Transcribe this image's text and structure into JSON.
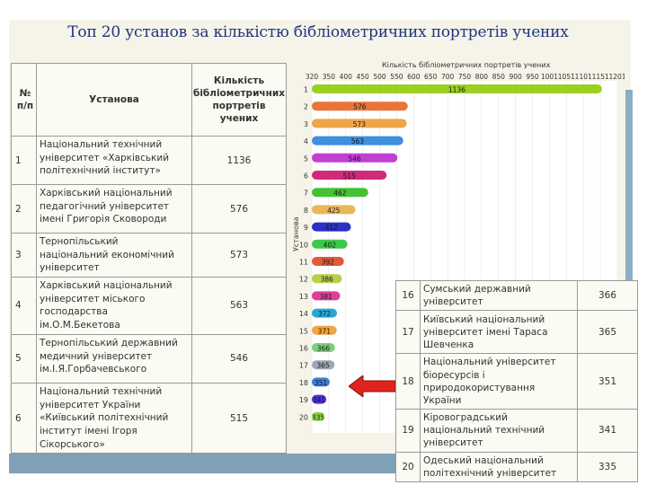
{
  "slide_title": "Топ 20 установ за кількістю бібліометричних портретів учених",
  "left_table": {
    "headers": {
      "num": "№ п/п",
      "name": "Установа",
      "count": "Кількість бібліометричних портретів учених"
    },
    "rows": [
      {
        "num": "1",
        "name": "Національний технічний університет «Харківський політехнічний інститут»",
        "count": "1136"
      },
      {
        "num": "2",
        "name": "Харківський національний педагогічний університет імені Григорія Сковороди",
        "count": "576"
      },
      {
        "num": "3",
        "name": "Тернопільський національний економічний університет",
        "count": "573"
      },
      {
        "num": "4",
        "name": "Харківський національний університет міського господарства ім.О.М.Бекетова",
        "count": "563"
      },
      {
        "num": "5",
        "name": "Тернопільський державний медичний університет ім.І.Я.Горбачевського",
        "count": "546"
      },
      {
        "num": "6",
        "name": "Національний технічний університет України «Київський політехнічний інститут імені Ігоря Сікорського»",
        "count": "515"
      }
    ]
  },
  "right_table": {
    "rows": [
      {
        "num": "16",
        "name": "Сумський державний університет",
        "count": "366"
      },
      {
        "num": "17",
        "name": "Київський національний університет імені Тараса Шевченка",
        "count": "365"
      },
      {
        "num": "18",
        "name": "Національний університет біоресурсів і природокористування України",
        "count": "351"
      },
      {
        "num": "19",
        "name": "Кіровоградський національний технічний університет",
        "count": "341"
      },
      {
        "num": "20",
        "name": "Одеський національний політехнічний університет",
        "count": "335"
      }
    ]
  },
  "chart_data": {
    "type": "bar",
    "orientation": "horizontal",
    "title": "Кількість бібліометричних портретів учених",
    "ylabel": "Установа",
    "x_ticks": [
      "320",
      "350",
      "400",
      "450",
      "500",
      "550",
      "600",
      "650",
      "700",
      "750",
      "800",
      "850",
      "900",
      "950",
      "1001",
      "1051",
      "1101",
      "1151",
      "1201"
    ],
    "categories": [
      "1",
      "2",
      "3",
      "4",
      "5",
      "6",
      "7",
      "8",
      "9",
      "10",
      "11",
      "12",
      "13",
      "14",
      "15",
      "16",
      "17",
      "18",
      "19",
      "20"
    ],
    "values": [
      1136,
      576,
      573,
      563,
      546,
      515,
      462,
      425,
      412,
      402,
      392,
      386,
      381,
      372,
      371,
      366,
      365,
      351,
      341,
      335
    ],
    "colors": [
      "#9bd020",
      "#e8763a",
      "#f0a54a",
      "#3d8fe0",
      "#c23fd3",
      "#d12a7a",
      "#44c234",
      "#e9b75a",
      "#2b2fc4",
      "#3ec84b",
      "#e05a3a",
      "#b8cf4a",
      "#e23c9c",
      "#2aa8d4",
      "#f2a540",
      "#7ad07c",
      "#9fa7b8",
      "#3a7fd8",
      "#4e2fd0",
      "#8bd640"
    ],
    "highlight_row": "18"
  }
}
